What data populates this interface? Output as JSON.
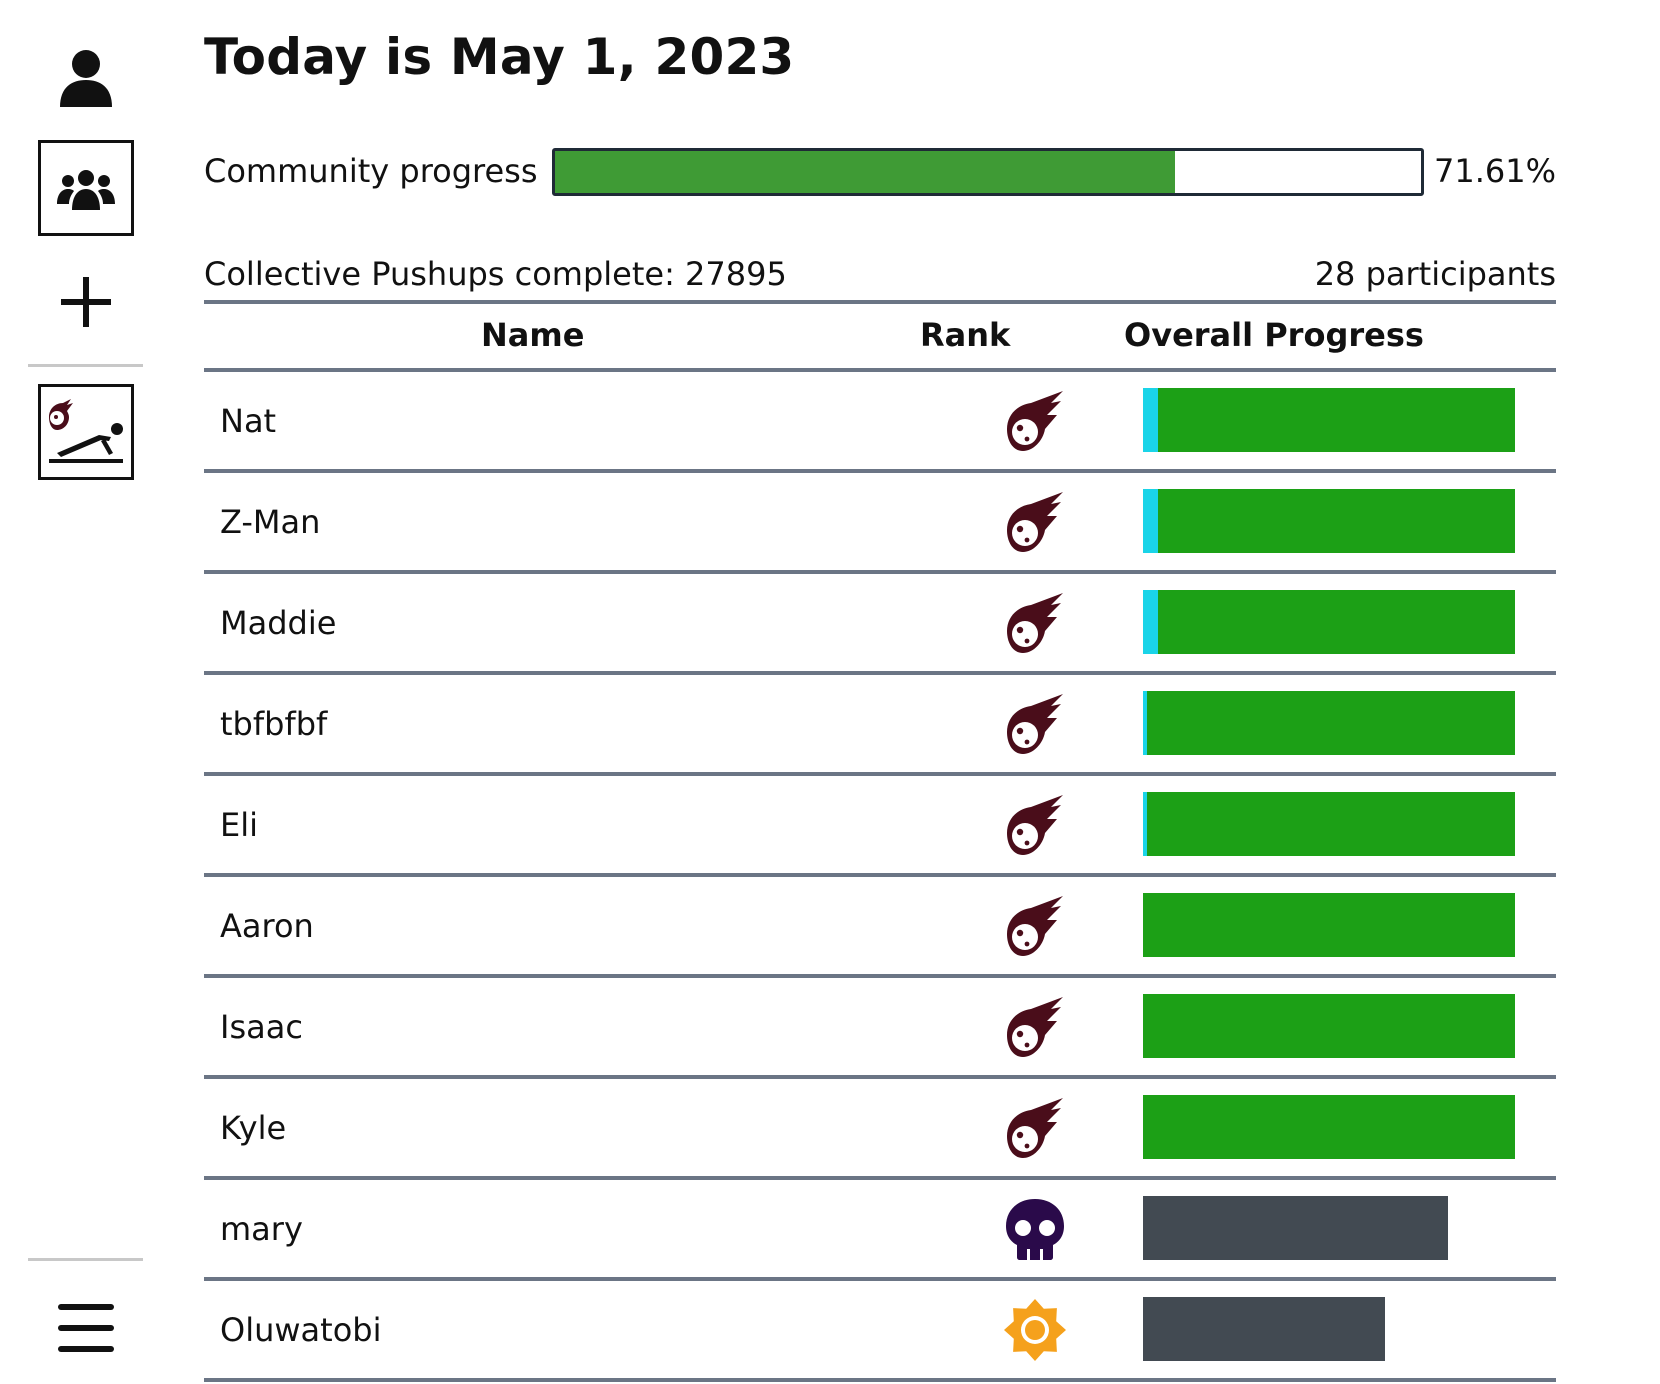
{
  "sidebar": {
    "items": [
      {
        "icon": "user-icon"
      },
      {
        "icon": "community-icon",
        "active": true
      },
      {
        "icon": "plus-icon"
      },
      {
        "icon": "pushup-icon",
        "active": true
      },
      {
        "icon": "menu-icon"
      }
    ]
  },
  "header": {
    "title": "Today is May 1, 2023"
  },
  "community": {
    "label": "Community progress",
    "progress_percent": 71.61,
    "progress_text": "71.61%",
    "colors": {
      "fill": "#3f9b35",
      "border": "#1f2a36"
    }
  },
  "summary": {
    "collective_text": "Collective Pushups complete: 27895",
    "participants_text": "28 participants"
  },
  "table": {
    "columns": [
      "Name",
      "Rank",
      "Overall Progress"
    ],
    "rows": [
      {
        "name": "Nat",
        "rank_icon": "meteor-icon",
        "bar": [
          {
            "color": "#1ad4e8",
            "fraction": 0.04
          },
          {
            "color": "#1ca016",
            "fraction": 0.96
          }
        ]
      },
      {
        "name": "Z-Man",
        "rank_icon": "meteor-icon",
        "bar": [
          {
            "color": "#1ad4e8",
            "fraction": 0.04
          },
          {
            "color": "#1ca016",
            "fraction": 0.96
          }
        ]
      },
      {
        "name": "Maddie",
        "rank_icon": "meteor-icon",
        "bar": [
          {
            "color": "#1ad4e8",
            "fraction": 0.04
          },
          {
            "color": "#1ca016",
            "fraction": 0.96
          }
        ]
      },
      {
        "name": "tbfbfbf",
        "rank_icon": "meteor-icon",
        "bar": [
          {
            "color": "#1ad4e8",
            "fraction": 0.012
          },
          {
            "color": "#1ca016",
            "fraction": 0.988
          }
        ]
      },
      {
        "name": "Eli",
        "rank_icon": "meteor-icon",
        "bar": [
          {
            "color": "#1ad4e8",
            "fraction": 0.012
          },
          {
            "color": "#1ca016",
            "fraction": 0.988
          }
        ]
      },
      {
        "name": "Aaron",
        "rank_icon": "meteor-icon",
        "bar": [
          {
            "color": "#1ca016",
            "fraction": 1.0
          }
        ]
      },
      {
        "name": "Isaac",
        "rank_icon": "meteor-icon",
        "bar": [
          {
            "color": "#1ca016",
            "fraction": 1.0
          }
        ]
      },
      {
        "name": "Kyle",
        "rank_icon": "meteor-icon",
        "bar": [
          {
            "color": "#1ca016",
            "fraction": 1.0
          }
        ]
      },
      {
        "name": "mary",
        "rank_icon": "skull-icon",
        "bar": [
          {
            "color": "#424a52",
            "fraction": 0.82
          }
        ]
      },
      {
        "name": "Oluwatobi",
        "rank_icon": "sun-icon",
        "bar": [
          {
            "color": "#424a52",
            "fraction": 0.65
          }
        ]
      }
    ]
  },
  "colors": {
    "meteor": "#4a0d1a",
    "skull": "#2a0a4a",
    "sun": "#f5a11c",
    "divider": "#6b7585"
  }
}
